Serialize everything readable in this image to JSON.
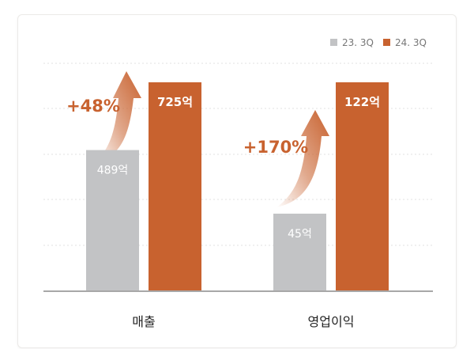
{
  "chart_data": {
    "type": "bar",
    "categories": [
      "매출",
      "영업이익"
    ],
    "series": [
      {
        "name": "23. 3Q",
        "values": [
          489,
          45
        ],
        "labels": [
          "489억",
          "45억"
        ],
        "color": "#c2c3c5"
      },
      {
        "name": "24. 3Q",
        "values": [
          725,
          122
        ],
        "labels": [
          "725억",
          "122억"
        ],
        "color": "#c8622f"
      }
    ],
    "growth": [
      "+48%",
      "+170%"
    ],
    "legend_position": "top-right",
    "grid": true,
    "note": "Each category uses its own scale (bars scaled so the 24. 3Q bar reaches equal height)."
  },
  "colors": {
    "accent": "#c8622f",
    "neutral": "#c2c3c5",
    "axis": "#8c8c8c",
    "text": "#222222"
  }
}
